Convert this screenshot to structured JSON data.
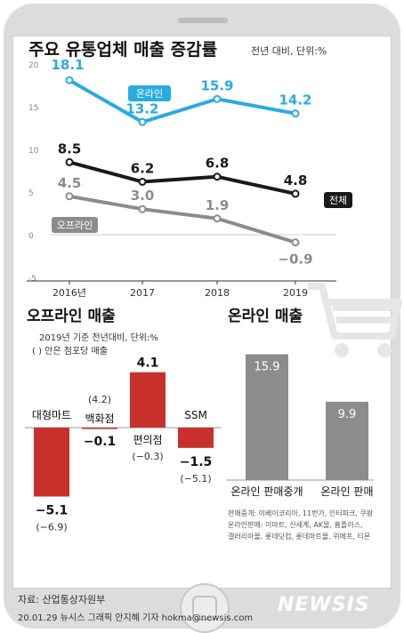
{
  "chart_data": [
    {
      "type": "line",
      "title": "주요 유통업체 매출 증감률",
      "subtitle": "전년 대비, 단위:%",
      "x": [
        "2016년",
        "2017",
        "2018",
        "2019"
      ],
      "ylim": [
        -5,
        20
      ],
      "yticks": [
        "20",
        "15",
        "10",
        "5",
        "0",
        "-5"
      ],
      "series": [
        {
          "name": "온라인",
          "values": [
            18.1,
            13.2,
            15.9,
            14.2
          ],
          "labels": [
            "18.1",
            "13.2",
            "15.9",
            "14.2"
          ],
          "color": "#29abe2"
        },
        {
          "name": "전체",
          "values": [
            8.5,
            6.2,
            6.8,
            4.8
          ],
          "labels": [
            "8.5",
            "6.2",
            "6.8",
            "4.8"
          ],
          "color": "#1a1a1a"
        },
        {
          "name": "오프라인",
          "values": [
            4.5,
            3.0,
            1.9,
            -0.9
          ],
          "labels": [
            "4.5",
            "3.0",
            "1.9",
            "−0.9"
          ],
          "color": "#8c8c8c"
        }
      ]
    },
    {
      "type": "bar",
      "title": "오프라인 매출",
      "note1": "2019년 기준 전년대비, 단위:%",
      "note2": "( ) 안은 점포당 매출",
      "categories": [
        "대형마트",
        "백화점",
        "편의점",
        "SSM"
      ],
      "values": [
        -5.1,
        -0.1,
        4.1,
        -1.5
      ],
      "value_labels": [
        "−5.1",
        "−0.1",
        "4.1",
        "−1.5"
      ],
      "per_store": [
        "(−6.9)",
        "(4.2)",
        "(−0.3)",
        "(−5.1)"
      ],
      "color": "#c8302c"
    },
    {
      "type": "bar",
      "title": "온라인 매출",
      "categories": [
        "온라인 판매중개",
        "온라인 판매"
      ],
      "values": [
        15.9,
        9.9
      ],
      "value_labels": [
        "15.9",
        "9.9"
      ],
      "color": "#8c8c8c",
      "notes": [
        "판매중개: 이베이코리아, 11번가, 인터파크, 쿠팡",
        "온라인판매: 이마트, 신세계, AK몰, 홈플러스,",
        "갤러리아몰, 롯데닷컴, 롯데마트몰, 위메프, 티몬"
      ]
    }
  ],
  "footer": {
    "source": "자료: 산업통상자원부",
    "credit": "20.01.29 뉴시스 그래픽 안지혜 기자 hokma@newsis.com",
    "watermark": "NEWSIS"
  }
}
